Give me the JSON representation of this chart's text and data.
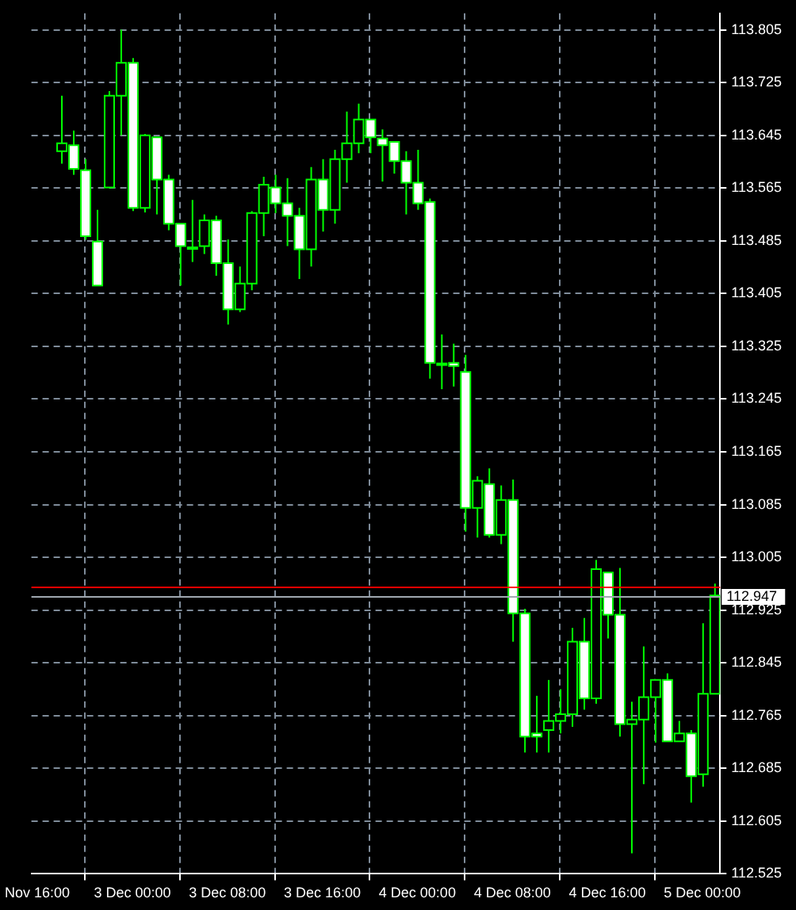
{
  "chart_data": {
    "type": "candlestick",
    "grid": true,
    "colors": [
      null,
      null,
      "#000000",
      "#ffffff",
      "#ffffff",
      "#ffffff",
      "#000000",
      "#000000",
      "#ffffff",
      "#000000",
      "#ffffff",
      "#ffffff",
      "#ffffff",
      "#ffffff",
      "#000000",
      "#ffffff",
      "#ffffff",
      "#000000",
      "#000000",
      "#000000",
      "#ffffff",
      "#ffffff",
      "#ffffff",
      "#000000",
      "#ffffff",
      "#000000",
      "#000000",
      "#000000",
      "#ffffff",
      "#ffffff",
      "#ffffff",
      "#ffffff",
      "#ffffff",
      "#ffffff",
      "#ffffff",
      "#ffffff",
      "#ffffff",
      "#000000",
      "#ffffff",
      "#000000",
      "#ffffff",
      "#ffffff",
      "#ffffff",
      "#000000",
      "#000000",
      "#000000",
      "#ffffff",
      "#000000",
      "#ffffff",
      "#ffffff",
      "#000000",
      "#000000",
      "#000000",
      "#ffffff",
      "#000000",
      "#ffffff",
      "#000000",
      "#000000"
    ],
    "categories": [
      "Nov 16:00",
      null,
      null,
      null,
      null,
      null,
      null,
      null,
      "3 Dec 00:00",
      null,
      null,
      null,
      null,
      null,
      null,
      null,
      "3 Dec 08:00",
      null,
      null,
      null,
      null,
      null,
      null,
      null,
      "3 Dec 16:00",
      null,
      null,
      null,
      null,
      null,
      null,
      null,
      "4 Dec 00:00",
      null,
      null,
      null,
      null,
      null,
      null,
      null,
      "4 Dec 08:00",
      null,
      null,
      null,
      null,
      null,
      null,
      null,
      "4 Dec 16:00",
      null,
      null,
      null,
      null,
      null,
      null,
      null,
      "5 Dec 00:00",
      null
    ],
    "ohlc": [
      null,
      null,
      [
        113.621,
        113.705,
        113.602,
        113.633
      ],
      [
        113.63,
        113.652,
        113.585,
        113.594
      ],
      [
        113.592,
        113.609,
        113.487,
        113.492
      ],
      [
        113.484,
        113.532,
        113.417,
        113.417
      ],
      [
        113.566,
        113.712,
        113.566,
        113.705
      ],
      [
        113.705,
        113.805,
        113.645,
        113.755
      ],
      [
        113.755,
        113.762,
        113.53,
        113.535
      ],
      [
        113.535,
        113.647,
        113.528,
        113.645
      ],
      [
        113.642,
        113.642,
        113.525,
        113.578
      ],
      [
        113.578,
        113.585,
        113.501,
        113.511
      ],
      [
        113.511,
        113.511,
        113.417,
        113.477
      ],
      [
        113.475,
        113.547,
        113.453,
        113.475
      ],
      [
        113.477,
        113.525,
        113.465,
        113.516
      ],
      [
        113.516,
        113.523,
        113.432,
        113.451
      ],
      [
        113.451,
        113.487,
        113.358,
        113.381
      ],
      [
        113.381,
        113.446,
        113.377,
        113.42
      ],
      [
        113.42,
        113.53,
        113.41,
        113.527
      ],
      [
        113.527,
        113.582,
        113.492,
        113.57
      ],
      [
        113.566,
        113.585,
        113.527,
        113.542
      ],
      [
        113.542,
        113.58,
        113.477,
        113.523
      ],
      [
        113.523,
        113.535,
        113.427,
        113.472
      ],
      [
        113.472,
        113.597,
        113.446,
        113.578
      ],
      [
        113.578,
        113.609,
        113.499,
        113.532
      ],
      [
        113.532,
        113.623,
        113.511,
        113.609
      ],
      [
        113.609,
        113.681,
        113.573,
        113.633
      ],
      [
        113.633,
        113.693,
        113.618,
        113.669
      ],
      [
        113.669,
        113.669,
        113.618,
        113.642
      ],
      [
        113.64,
        113.654,
        113.575,
        113.63
      ],
      [
        113.635,
        113.635,
        113.587,
        113.606
      ],
      [
        113.606,
        113.621,
        113.525,
        113.573
      ],
      [
        113.573,
        113.623,
        113.532,
        113.542
      ],
      [
        113.544,
        113.549,
        113.276,
        113.3
      ],
      [
        113.299,
        113.343,
        113.26,
        113.299
      ],
      [
        113.3,
        113.329,
        113.264,
        113.295
      ],
      [
        113.286,
        113.312,
        113.044,
        113.08
      ],
      [
        113.08,
        113.128,
        113.035,
        113.121
      ],
      [
        113.116,
        113.14,
        113.035,
        113.039
      ],
      [
        113.039,
        113.114,
        113.025,
        113.092
      ],
      [
        113.092,
        113.123,
        112.877,
        112.92
      ],
      [
        112.92,
        112.927,
        112.709,
        112.733
      ],
      [
        112.738,
        112.795,
        112.709,
        112.733
      ],
      [
        112.743,
        112.819,
        112.709,
        112.757
      ],
      [
        112.757,
        112.805,
        112.738,
        112.767
      ],
      [
        112.767,
        112.898,
        112.748,
        112.877
      ],
      [
        112.877,
        112.913,
        112.774,
        112.791
      ],
      [
        112.791,
        113.001,
        112.783,
        112.987
      ],
      [
        112.982,
        112.982,
        112.882,
        112.918
      ],
      [
        112.918,
        112.989,
        112.733,
        112.752
      ],
      [
        112.752,
        112.786,
        112.556,
        112.759
      ],
      [
        112.759,
        112.87,
        112.661,
        112.793
      ],
      [
        112.793,
        112.819,
        112.724,
        112.819
      ],
      [
        112.819,
        112.829,
        112.726,
        112.726
      ],
      [
        112.726,
        112.757,
        112.726,
        112.738
      ],
      [
        112.738,
        112.743,
        112.633,
        112.673
      ],
      [
        112.676,
        112.905,
        112.657,
        112.798
      ],
      [
        112.798,
        112.965,
        112.798,
        112.947
      ]
    ],
    "ylim": [
      112.525,
      113.83
    ],
    "yticks": [
      {
        "value": 112.525,
        "label": "112.525"
      },
      {
        "value": 112.605,
        "label": "112.605"
      },
      {
        "value": 112.685,
        "label": "112.685"
      },
      {
        "value": 112.765,
        "label": "112.765"
      },
      {
        "value": 112.845,
        "label": "112.845"
      },
      {
        "value": 112.925,
        "label": "112.925"
      },
      {
        "value": 113.005,
        "label": "113.005"
      },
      {
        "value": 113.085,
        "label": "113.085"
      },
      {
        "value": 113.165,
        "label": "113.165"
      },
      {
        "value": 113.245,
        "label": "113.245"
      },
      {
        "value": 113.325,
        "label": "113.325"
      },
      {
        "value": 113.405,
        "label": "113.405"
      },
      {
        "value": 113.485,
        "label": "113.485"
      },
      {
        "value": 113.565,
        "label": "113.565"
      },
      {
        "value": 113.645,
        "label": "113.645"
      },
      {
        "value": 113.725,
        "label": "113.725"
      },
      {
        "value": 113.805,
        "label": "113.805"
      }
    ],
    "ref_lines": [
      {
        "axis": "y",
        "value": 112.96,
        "label": null,
        "color": "#ff0000"
      },
      {
        "axis": "y",
        "value": 112.947,
        "label": "112.947",
        "color": "#a0a8b0"
      }
    ]
  }
}
